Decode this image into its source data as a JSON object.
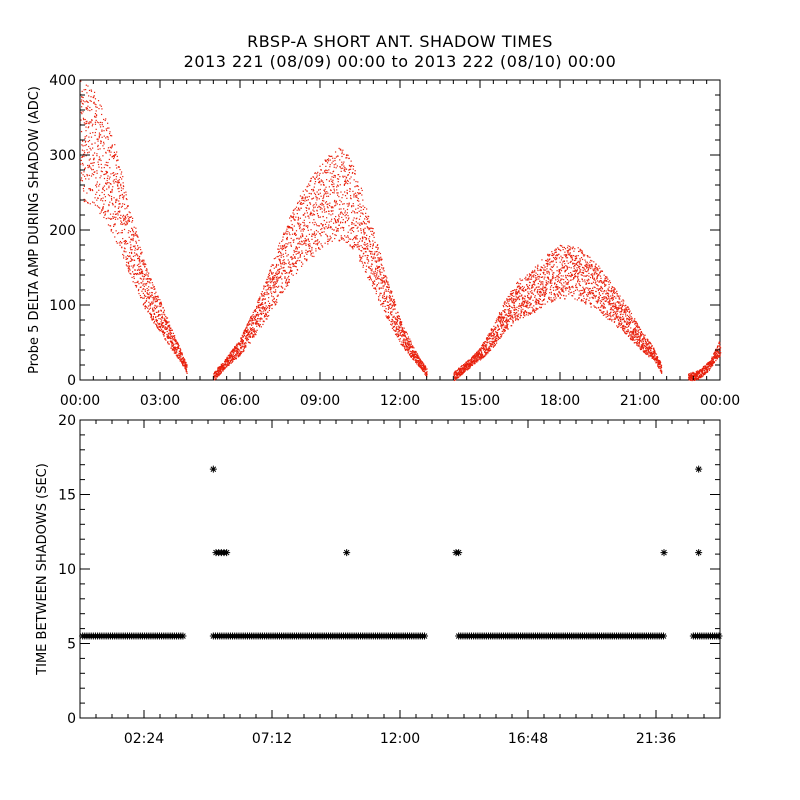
{
  "title": "RBSP-A SHORT ANT. SHADOW TIMES",
  "subtitle": "2013 221 (08/09) 00:00 to 2013 222 (08/10) 00:00",
  "colors": {
    "points": "#e8200c",
    "axes": "#000000",
    "background": "#ffffff"
  },
  "chart_data": [
    {
      "type": "scatter",
      "title": "",
      "xlabel": "",
      "ylabel": "Probe 5 DELTA AMP DURING SHADOW (ADC)",
      "xlim": [
        0,
        24
      ],
      "ylim": [
        0,
        400
      ],
      "x_tick_labels": [
        "00:00",
        "03:00",
        "06:00",
        "09:00",
        "12:00",
        "15:00",
        "18:00",
        "21:00",
        "00:00"
      ],
      "x_ticks_hours": [
        0,
        3,
        6,
        9,
        12,
        15,
        18,
        21,
        24
      ],
      "y_ticks": [
        0,
        100,
        200,
        300,
        400
      ],
      "grid": false,
      "series": [
        {
          "color": "#e8200c",
          "marker": "dot",
          "envelope_hours_vs_value": [
            [
              0.0,
              320
            ],
            [
              0.5,
              310
            ],
            [
              1.0,
              280
            ],
            [
              1.5,
              230
            ],
            [
              2.0,
              170
            ],
            [
              2.5,
              120
            ],
            [
              3.0,
              85
            ],
            [
              3.5,
              50
            ],
            [
              3.8,
              30
            ],
            [
              4.0,
              15
            ],
            [
              5.0,
              5
            ],
            [
              5.5,
              25
            ],
            [
              6.0,
              45
            ],
            [
              6.5,
              75
            ],
            [
              7.0,
              110
            ],
            [
              7.5,
              150
            ],
            [
              8.0,
              185
            ],
            [
              8.5,
              210
            ],
            [
              9.0,
              230
            ],
            [
              9.5,
              250
            ],
            [
              10.0,
              245
            ],
            [
              10.5,
              210
            ],
            [
              11.0,
              160
            ],
            [
              11.5,
              110
            ],
            [
              12.0,
              65
            ],
            [
              12.5,
              35
            ],
            [
              13.0,
              10
            ],
            [
              14.0,
              5
            ],
            [
              14.5,
              20
            ],
            [
              15.0,
              35
            ],
            [
              15.5,
              60
            ],
            [
              16.0,
              90
            ],
            [
              16.5,
              110
            ],
            [
              17.0,
              120
            ],
            [
              17.5,
              135
            ],
            [
              18.0,
              145
            ],
            [
              18.5,
              145
            ],
            [
              19.0,
              135
            ],
            [
              19.5,
              120
            ],
            [
              20.0,
              100
            ],
            [
              20.5,
              80
            ],
            [
              21.0,
              55
            ],
            [
              21.5,
              35
            ],
            [
              21.8,
              15
            ],
            [
              22.8,
              3
            ],
            [
              23.2,
              8
            ],
            [
              23.6,
              20
            ],
            [
              24.0,
              45
            ]
          ]
        }
      ]
    },
    {
      "type": "scatter",
      "title": "",
      "xlabel": "",
      "ylabel": "TIME BETWEEN SHADOWS (SEC)",
      "xlim": [
        0,
        24
      ],
      "ylim": [
        0,
        20
      ],
      "x_tick_labels": [
        "02:24",
        "07:12",
        "12:00",
        "16:48",
        "21:36"
      ],
      "x_ticks_hours": [
        2.4,
        7.2,
        12.0,
        16.8,
        21.6
      ],
      "y_ticks": [
        0,
        5,
        10,
        15,
        20
      ],
      "grid": false,
      "series": [
        {
          "color": "#000000",
          "marker": "asterisk",
          "baseline_value": 5.5,
          "baseline_segments_hours": [
            [
              0.1,
              3.9
            ],
            [
              5.0,
              13.0
            ],
            [
              14.2,
              21.9
            ],
            [
              23.0,
              24.0
            ]
          ],
          "points_hours_vs_value": [
            [
              5.0,
              16.7
            ],
            [
              5.1,
              11.1
            ],
            [
              5.2,
              11.1
            ],
            [
              5.3,
              11.1
            ],
            [
              5.4,
              11.1
            ],
            [
              5.5,
              11.1
            ],
            [
              10.0,
              11.1
            ],
            [
              14.1,
              11.1
            ],
            [
              14.2,
              11.1
            ],
            [
              21.9,
              11.1
            ],
            [
              23.2,
              11.1
            ],
            [
              23.2,
              16.7
            ]
          ]
        }
      ]
    }
  ]
}
